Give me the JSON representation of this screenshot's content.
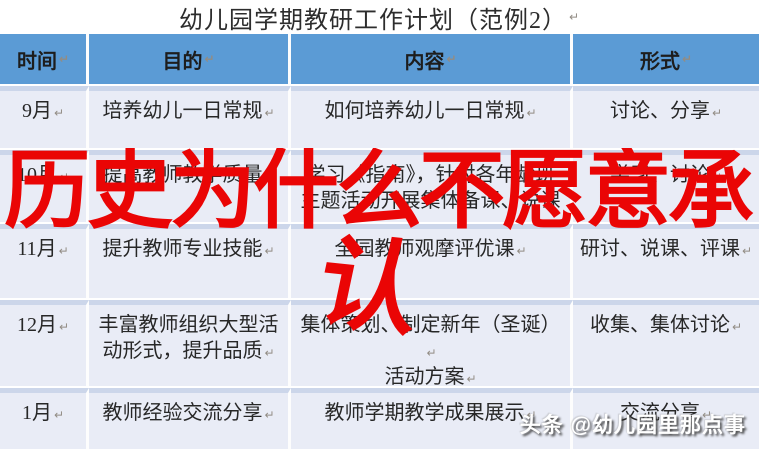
{
  "title": "幼儿园学期教研工作计划（范例2）",
  "return_mark": "↵",
  "table": {
    "headers": {
      "time": "时间",
      "purpose": "目的",
      "content": "内容",
      "form": "形式"
    },
    "rows": [
      {
        "time": "9月",
        "purpose": "培养幼儿一日常规",
        "content": "如何培养幼儿一日常规",
        "form": "讨论、分享"
      },
      {
        "time": "10月",
        "purpose": "提高教师教学质量",
        "content": "学习《指南》，针对各年龄班主题活动开展集体备课、说课",
        "form": "学习、讨论"
      },
      {
        "time": "11月",
        "purpose": "提升教师专业技能",
        "content": "全园教师观摩评优课",
        "form": "研讨、说课、评课"
      },
      {
        "time": "12月",
        "purpose": "丰富教师组织大型活动形式，提升品质",
        "content_line1": "集体策划、制定新年（圣诞）",
        "content_line2": "活动方案",
        "form": "收集、集体讨论"
      },
      {
        "time": "1月",
        "purpose": "教师经验交流分享",
        "content": "教师学期教学成果展示",
        "form": "交流分享"
      }
    ]
  },
  "overlay": {
    "line1": "历史为什么不愿意承",
    "line2": "认",
    "color": "#ea0505"
  },
  "watermark": {
    "text": "头条 @幼儿园里那点事"
  },
  "colors": {
    "header_bg": "#5b9bd5",
    "row_bg": "#e9ecf6",
    "row_band": "#ccd6ea",
    "grid_line": "#ffffff",
    "page_bg": "#ffffff"
  }
}
